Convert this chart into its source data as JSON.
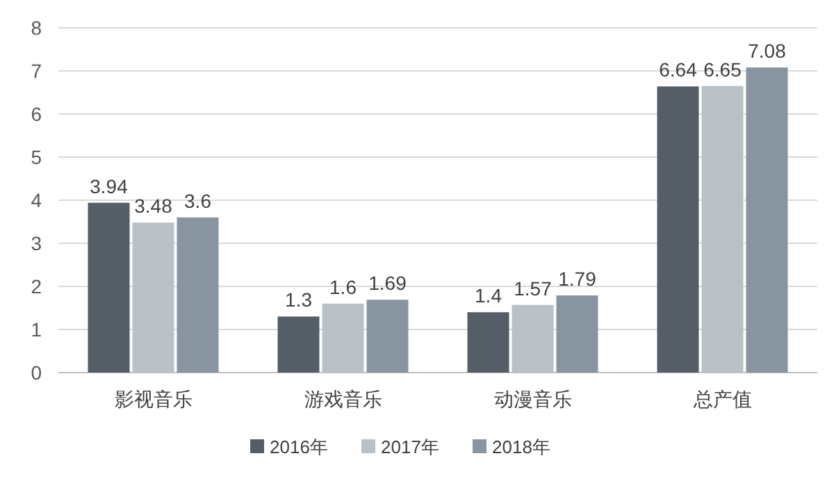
{
  "chart_data": {
    "type": "bar",
    "categories": [
      "影视音乐",
      "游戏音乐",
      "动漫音乐",
      "总产值"
    ],
    "series": [
      {
        "name": "2016年",
        "color": "#555e66",
        "values": [
          3.94,
          1.3,
          1.4,
          6.64
        ]
      },
      {
        "name": "2017年",
        "color": "#b9c1c6",
        "values": [
          3.48,
          1.6,
          1.57,
          6.65
        ]
      },
      {
        "name": "2018年",
        "color": "#8895a1",
        "values": [
          3.6,
          1.69,
          1.79,
          7.08
        ]
      }
    ],
    "ylim": [
      0,
      8
    ],
    "yticks": [
      0,
      1,
      2,
      3,
      4,
      5,
      6,
      7,
      8
    ],
    "grid": "y",
    "legend": "bottom",
    "data_labels": true
  }
}
